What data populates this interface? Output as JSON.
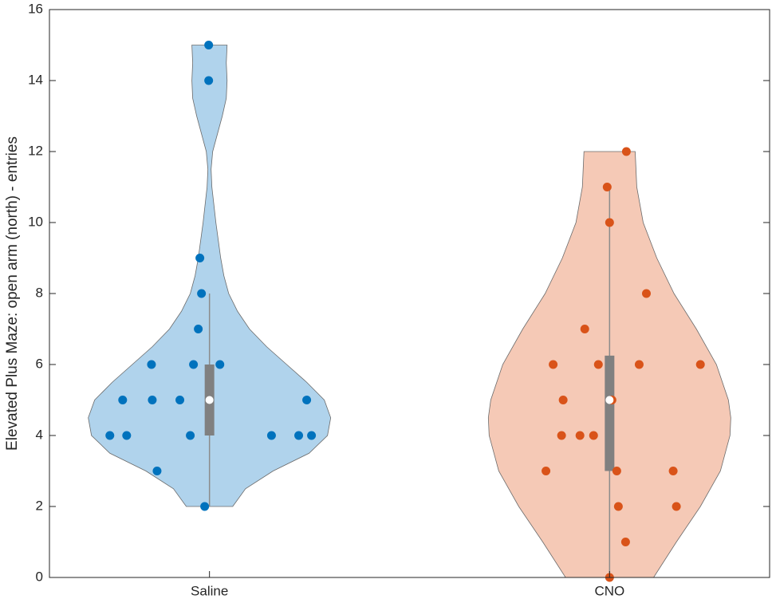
{
  "chart_data": {
    "type": "violin",
    "ylabel": "Elevated Plus Maze: open arm (north) - entries",
    "categories": [
      "Saline",
      "CNO"
    ],
    "xlim": [
      0.6,
      2.4
    ],
    "ylim": [
      0,
      16
    ],
    "yticks": [
      0,
      2,
      4,
      6,
      8,
      10,
      12,
      14,
      16
    ],
    "series": [
      {
        "color": "#0072bd",
        "fill_color": "#b0d3ec",
        "x": [
          0.998,
          0.998,
          0.976,
          0.98,
          0.972,
          0.855,
          0.96,
          1.026,
          0.783,
          0.857,
          0.926,
          1.243,
          0.751,
          0.793,
          0.952,
          1.155,
          1.223,
          1.255,
          0.869,
          0.988
        ],
        "values": [
          15,
          14,
          9,
          8,
          7,
          6,
          6,
          6,
          5,
          5,
          5,
          5,
          4,
          4,
          4,
          4,
          4,
          4,
          3,
          2
        ],
        "box": {
          "whisker_low": 2,
          "q1": 4,
          "median": 5,
          "q3": 6,
          "whisker_high": 8
        },
        "density": {
          "y": [
            2,
            2.5,
            3,
            3.5,
            4,
            4.5,
            5,
            5.5,
            6,
            6.5,
            7,
            7.5,
            8,
            8.5,
            9,
            10,
            11,
            11.5,
            12,
            12.5,
            13,
            13.5,
            14,
            14.5,
            15
          ],
          "half_width": [
            0.058,
            0.09,
            0.159,
            0.249,
            0.295,
            0.303,
            0.287,
            0.243,
            0.193,
            0.143,
            0.1,
            0.07,
            0.048,
            0.036,
            0.028,
            0.016,
            0.006,
            0.004,
            0.008,
            0.02,
            0.032,
            0.042,
            0.044,
            0.042,
            0.044
          ]
        }
      },
      {
        "color": "#d95319",
        "fill_color": "#f5c9b6",
        "x": [
          2.042,
          1.994,
          2.0,
          2.092,
          1.938,
          1.859,
          1.972,
          2.074,
          2.227,
          1.884,
          2.006,
          1.88,
          1.926,
          1.96,
          1.841,
          2.018,
          2.159,
          2.022,
          2.167,
          2.04,
          2.0
        ],
        "values": [
          12,
          11,
          10,
          8,
          7,
          6,
          6,
          6,
          6,
          5,
          5,
          4,
          4,
          4,
          3,
          3,
          3,
          2,
          2,
          1,
          0
        ],
        "box": {
          "whisker_low": 0,
          "q1": 3,
          "median": 5,
          "q3": 6.25,
          "whisker_high": 11
        },
        "density": {
          "y": [
            0,
            1,
            2,
            3,
            4,
            4.5,
            5,
            6,
            7,
            8,
            9,
            10,
            11,
            12
          ],
          "half_width": [
            0.11,
            0.167,
            0.227,
            0.277,
            0.301,
            0.303,
            0.297,
            0.267,
            0.217,
            0.161,
            0.118,
            0.084,
            0.068,
            0.064
          ]
        }
      }
    ]
  }
}
